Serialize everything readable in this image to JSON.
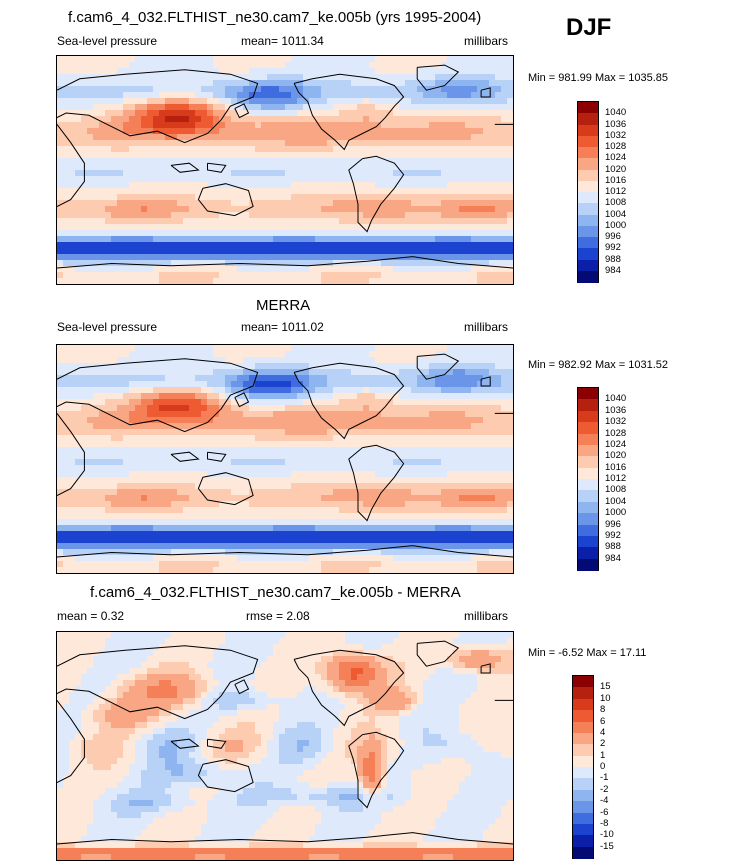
{
  "season": "DJF",
  "panels": [
    {
      "title": "f.cam6_4_032.FLTHIST_ne30.cam7_ke.005b (yrs 1995-2004)",
      "left_label": "Sea-level pressure",
      "center_label": "mean= 1011.34",
      "right_label": "millibars",
      "minmax": "Min = 981.99 Max = 1035.85",
      "colorbar_labels": [
        "1040",
        "1036",
        "1032",
        "1028",
        "1024",
        "1020",
        "1016",
        "1012",
        "1008",
        "1004",
        "1000",
        "996",
        "992",
        "988",
        "984"
      ],
      "colors": [
        "#8b0000",
        "#b5200f",
        "#d83b1c",
        "#ee5a31",
        "#f57f57",
        "#f9a684",
        "#fccbb0",
        "#fde8da",
        "#deeafb",
        "#b8d2f7",
        "#8fb5f0",
        "#6a95e9",
        "#3f6de0",
        "#1b43cf",
        "#0b1fa8",
        "#030a73"
      ]
    },
    {
      "title": "MERRA",
      "left_label": "Sea-level pressure",
      "center_label": "mean= 1011.02",
      "right_label": "millibars",
      "minmax": "Min = 982.92 Max = 1031.52",
      "colorbar_labels": [
        "1040",
        "1036",
        "1032",
        "1028",
        "1024",
        "1020",
        "1016",
        "1012",
        "1008",
        "1004",
        "1000",
        "996",
        "992",
        "988",
        "984"
      ],
      "colors": [
        "#8b0000",
        "#b5200f",
        "#d83b1c",
        "#ee5a31",
        "#f57f57",
        "#f9a684",
        "#fccbb0",
        "#fde8da",
        "#deeafb",
        "#b8d2f7",
        "#8fb5f0",
        "#6a95e9",
        "#3f6de0",
        "#1b43cf",
        "#0b1fa8",
        "#030a73"
      ]
    },
    {
      "title": "f.cam6_4_032.FLTHIST_ne30.cam7_ke.005b - MERRA",
      "left_label": "mean =   0.32",
      "center_label": "rmse =   2.08",
      "right_label": "millibars",
      "minmax": "Min =  -6.52 Max =  17.11",
      "colorbar_labels": [
        "15",
        "10",
        "8",
        "6",
        "4",
        "2",
        "1",
        "0",
        "-1",
        "-2",
        "-4",
        "-6",
        "-8",
        "-10",
        "-15"
      ],
      "colors": [
        "#8b0000",
        "#b5200f",
        "#d83b1c",
        "#ee5a31",
        "#f57f57",
        "#f9a684",
        "#fccbb0",
        "#fde8da",
        "#deeafb",
        "#b8d2f7",
        "#8fb5f0",
        "#6a95e9",
        "#3f6de0",
        "#1b43cf",
        "#0b1fa8",
        "#030a73"
      ]
    }
  ],
  "chart_data": [
    {
      "type": "heatmap",
      "title": "f.cam6_4_032.FLTHIST_ne30.cam7_ke.005b (yrs 1995-2004)",
      "variable": "Sea-level pressure",
      "units": "millibars",
      "mean": 1011.34,
      "min": 981.99,
      "max": 1035.85,
      "contour_levels": [
        984,
        988,
        992,
        996,
        1000,
        1004,
        1008,
        1012,
        1016,
        1020,
        1024,
        1028,
        1032,
        1036,
        1040
      ]
    },
    {
      "type": "heatmap",
      "title": "MERRA",
      "variable": "Sea-level pressure",
      "units": "millibars",
      "mean": 1011.02,
      "min": 982.92,
      "max": 1031.52,
      "contour_levels": [
        984,
        988,
        992,
        996,
        1000,
        1004,
        1008,
        1012,
        1016,
        1020,
        1024,
        1028,
        1032,
        1036,
        1040
      ]
    },
    {
      "type": "heatmap",
      "title": "f.cam6_4_032.FLTHIST_ne30.cam7_ke.005b - MERRA",
      "units": "millibars",
      "mean": 0.32,
      "rmse": 2.08,
      "min": -6.52,
      "max": 17.11,
      "contour_levels": [
        -15,
        -10,
        -8,
        -6,
        -4,
        -2,
        -1,
        0,
        1,
        2,
        4,
        6,
        8,
        10,
        15
      ]
    }
  ]
}
